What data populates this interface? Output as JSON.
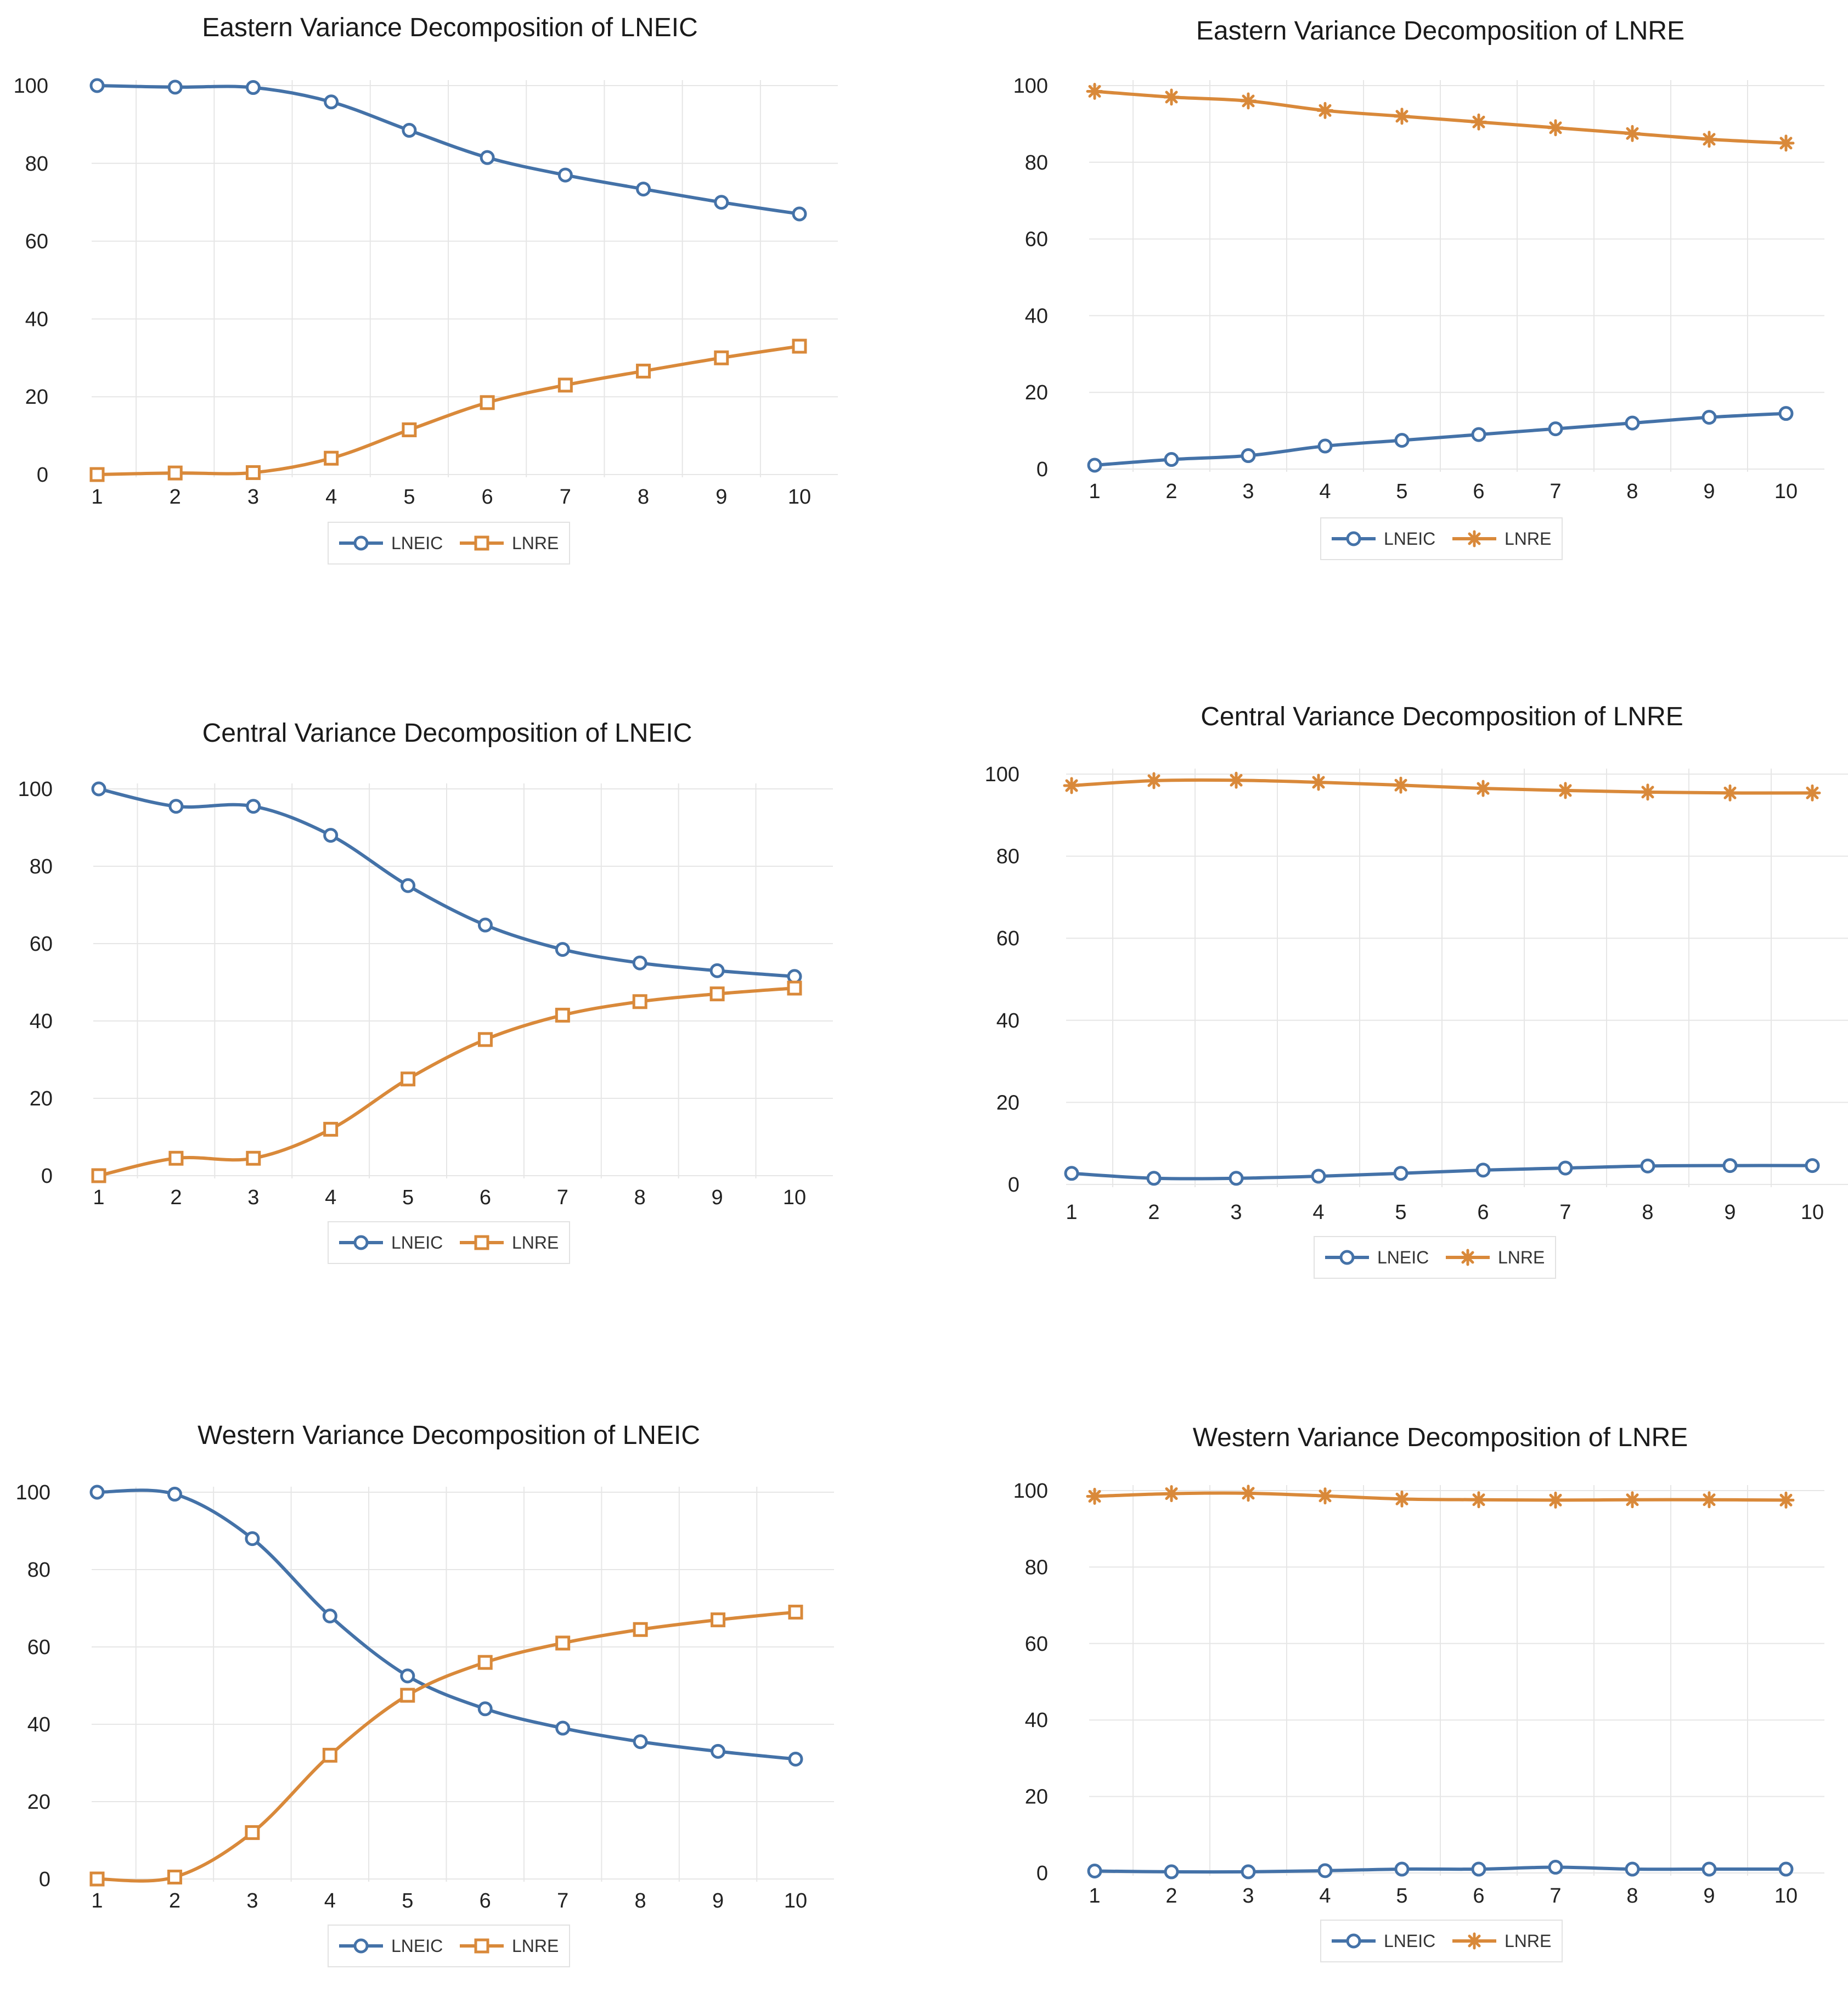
{
  "colors": {
    "lneic": "#4472a8",
    "lnre": "#d9893a"
  },
  "chart_data": [
    {
      "type": "line",
      "title": "Eastern Variance Decomposition of LNEIC",
      "categories": [
        "1",
        "2",
        "3",
        "4",
        "5",
        "6",
        "7",
        "8",
        "9",
        "10"
      ],
      "ylim": [
        0,
        100
      ],
      "yticks": [
        "0",
        "20",
        "40",
        "60",
        "80",
        "100"
      ],
      "series": [
        {
          "name": "LNEIC",
          "marker": "circle",
          "values": [
            100,
            99.6,
            99.5,
            95.8,
            88.5,
            81.5,
            77,
            73.4,
            70,
            67
          ]
        },
        {
          "name": "LNRE",
          "marker": "square",
          "values": [
            0,
            0.4,
            0.5,
            4.2,
            11.5,
            18.5,
            23,
            26.6,
            30,
            33
          ]
        }
      ]
    },
    {
      "type": "line",
      "title": "Eastern Variance Decomposition of LNRE",
      "categories": [
        "1",
        "2",
        "3",
        "4",
        "5",
        "6",
        "7",
        "8",
        "9",
        "10"
      ],
      "ylim": [
        0,
        100
      ],
      "yticks": [
        "0",
        "20",
        "40",
        "60",
        "80",
        "100"
      ],
      "series": [
        {
          "name": "LNEIC",
          "marker": "circle",
          "values": [
            1,
            2.5,
            3.5,
            6,
            7.5,
            9,
            10.5,
            12,
            13.5,
            14.5
          ]
        },
        {
          "name": "LNRE",
          "marker": "star",
          "values": [
            98.5,
            97,
            96,
            93.5,
            92,
            90.5,
            89,
            87.5,
            86,
            85
          ]
        }
      ]
    },
    {
      "type": "line",
      "title": "Central Variance Decomposition of LNEIC",
      "categories": [
        "1",
        "2",
        "3",
        "4",
        "5",
        "6",
        "7",
        "8",
        "9",
        "10"
      ],
      "ylim": [
        0,
        100
      ],
      "yticks": [
        "0",
        "20",
        "40",
        "60",
        "80",
        "100"
      ],
      "series": [
        {
          "name": "LNEIC",
          "marker": "circle",
          "values": [
            100,
            95.5,
            95.5,
            88,
            75,
            64.8,
            58.5,
            55,
            53,
            51.5
          ]
        },
        {
          "name": "LNRE",
          "marker": "square",
          "values": [
            0,
            4.5,
            4.5,
            12,
            25,
            35.2,
            41.5,
            45,
            47,
            48.5
          ]
        }
      ]
    },
    {
      "type": "line",
      "title": "Central Variance Decomposition of LNRE",
      "categories": [
        "1",
        "2",
        "3",
        "4",
        "5",
        "6",
        "7",
        "8",
        "9",
        "10"
      ],
      "ylim": [
        0,
        100
      ],
      "yticks": [
        "0",
        "20",
        "40",
        "60",
        "80",
        "100"
      ],
      "series": [
        {
          "name": "LNEIC",
          "marker": "circle",
          "values": [
            2.7,
            1.5,
            1.5,
            2,
            2.7,
            3.5,
            4,
            4.5,
            4.6,
            4.6
          ]
        },
        {
          "name": "LNRE",
          "marker": "star",
          "values": [
            97.2,
            98.4,
            98.5,
            98,
            97.3,
            96.5,
            96,
            95.6,
            95.4,
            95.4
          ]
        }
      ]
    },
    {
      "type": "line",
      "title": "Western Variance Decomposition of LNEIC",
      "categories": [
        "1",
        "2",
        "3",
        "4",
        "5",
        "6",
        "7",
        "8",
        "9",
        "10"
      ],
      "ylim": [
        0,
        100
      ],
      "yticks": [
        "0",
        "20",
        "40",
        "60",
        "80",
        "100"
      ],
      "series": [
        {
          "name": "LNEIC",
          "marker": "circle",
          "values": [
            100,
            99.5,
            88,
            68,
            52.5,
            44,
            39,
            35.5,
            33,
            31
          ]
        },
        {
          "name": "LNRE",
          "marker": "square",
          "values": [
            0,
            0.5,
            12,
            32,
            47.5,
            56,
            61,
            64.5,
            67,
            69
          ]
        }
      ]
    },
    {
      "type": "line",
      "title": "Western Variance Decomposition of LNRE",
      "categories": [
        "1",
        "2",
        "3",
        "4",
        "5",
        "6",
        "7",
        "8",
        "9",
        "10"
      ],
      "ylim": [
        0,
        100
      ],
      "yticks": [
        "0",
        "20",
        "40",
        "60",
        "80",
        "100"
      ],
      "series": [
        {
          "name": "LNEIC",
          "marker": "circle",
          "values": [
            0.5,
            0.3,
            0.3,
            0.6,
            1,
            1,
            1.5,
            1,
            1,
            1
          ]
        },
        {
          "name": "LNRE",
          "marker": "star",
          "values": [
            98.5,
            99.2,
            99.3,
            98.6,
            97.8,
            97.6,
            97.5,
            97.6,
            97.6,
            97.5
          ]
        }
      ]
    }
  ]
}
